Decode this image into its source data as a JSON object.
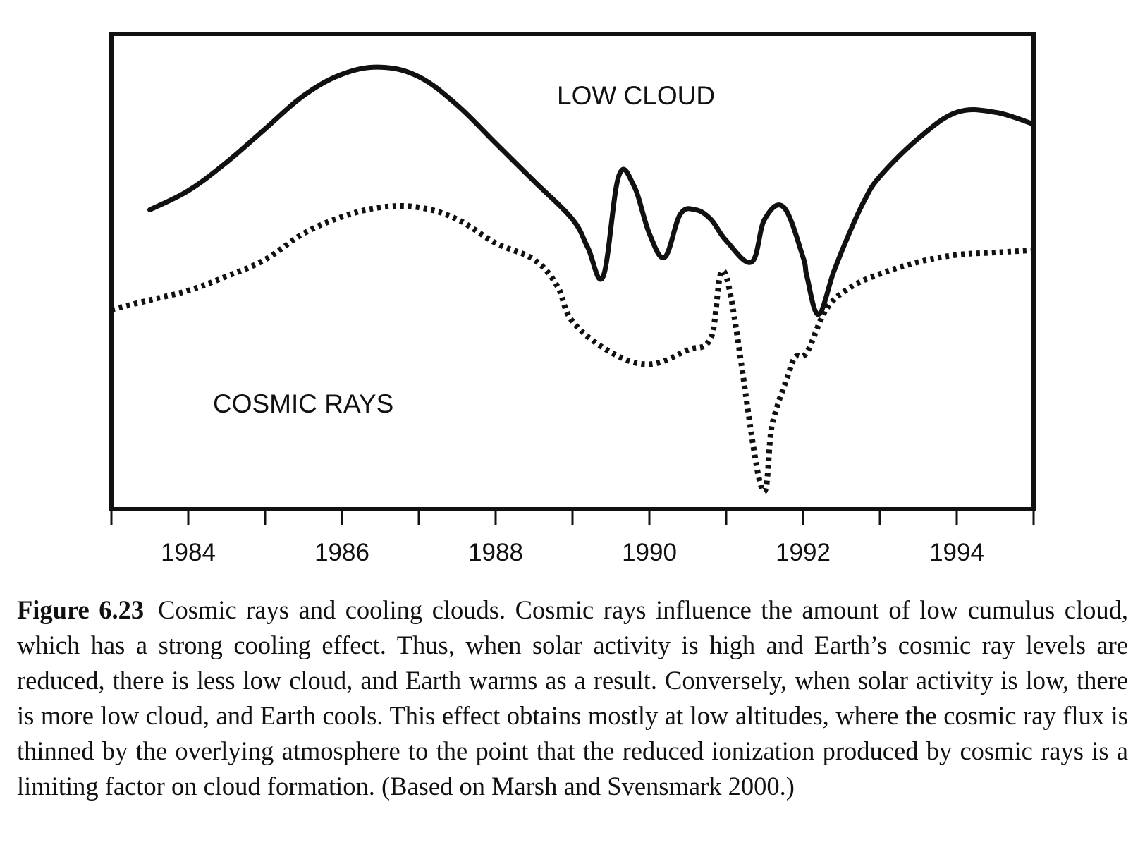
{
  "chart_data": {
    "type": "line",
    "x_ticks": [
      1983,
      1984,
      1985,
      1986,
      1987,
      1988,
      1989,
      1990,
      1991,
      1992,
      1993,
      1994,
      1995
    ],
    "x_tick_labels": [
      "1984",
      "1986",
      "1988",
      "1990",
      "1992",
      "1994"
    ],
    "labeled_tick_years": [
      1984,
      1986,
      1988,
      1990,
      1992,
      1994
    ],
    "xlim": [
      1983,
      1995
    ],
    "ylim": [
      0,
      100
    ],
    "grid": false,
    "legend": "none",
    "series": [
      {
        "name": "LOW CLOUD",
        "style": "solid",
        "color": "#111111",
        "x": [
          1983.5,
          1984.0,
          1984.5,
          1985.0,
          1985.5,
          1986.0,
          1986.5,
          1987.0,
          1987.5,
          1988.0,
          1988.5,
          1989.0,
          1989.2,
          1989.4,
          1989.6,
          1989.8,
          1990.0,
          1990.2,
          1990.4,
          1990.6,
          1990.8,
          1991.0,
          1991.33,
          1991.5,
          1991.75,
          1992.0,
          1992.05,
          1992.2,
          1992.4,
          1992.6,
          1992.8,
          1993.0,
          1993.5,
          1994.0,
          1994.5,
          1995.0
        ],
        "y": [
          63,
          67,
          73,
          80,
          87,
          91.5,
          93,
          91,
          85,
          77,
          69,
          61,
          55,
          49,
          70,
          68,
          58,
          53,
          62,
          63,
          61,
          56.5,
          52,
          61,
          63.5,
          53,
          49,
          41,
          50,
          58,
          65,
          70,
          78,
          83.5,
          83.5,
          81
        ]
      },
      {
        "name": "COSMIC RAYS",
        "style": "dotted",
        "color": "#111111",
        "x": [
          1983.0,
          1983.5,
          1984.0,
          1984.5,
          1985.0,
          1985.5,
          1986.0,
          1986.5,
          1987.0,
          1987.5,
          1988.0,
          1988.5,
          1988.8,
          1989.0,
          1989.5,
          1990.0,
          1990.5,
          1990.8,
          1991.0,
          1991.45,
          1991.6,
          1991.8,
          1991.9,
          1992.05,
          1992.3,
          1992.6,
          1993.0,
          1993.5,
          1994.0,
          1994.5,
          1995.0
        ],
        "y": [
          42,
          44,
          46,
          49,
          52.5,
          58,
          61.5,
          63.5,
          63.5,
          61,
          56,
          52.5,
          47,
          39.5,
          33,
          30.5,
          33.5,
          36,
          49,
          5,
          18,
          28,
          32,
          33,
          42,
          46.5,
          49.5,
          52,
          53.5,
          54,
          54.5
        ]
      }
    ]
  },
  "caption": {
    "figure_number": "Figure 6.23",
    "text": "Cosmic rays and cooling clouds. Cosmic rays influence the amount of low cumulus cloud, which has a strong cooling effect. Thus, when solar activity is high and Earth’s cosmic ray levels are reduced, there is less low cloud, and Earth warms as a result. Conversely, when solar activity is low, there is more low cloud, and Earth cools. This effect obtains mostly at low altitudes, where the cosmic ray flux is thinned by the overlying atmosphere to the point that the reduced ionization produced by cosmic rays is a limiting factor on cloud formation. (Based on Marsh and Svensmark 2000.)"
  }
}
